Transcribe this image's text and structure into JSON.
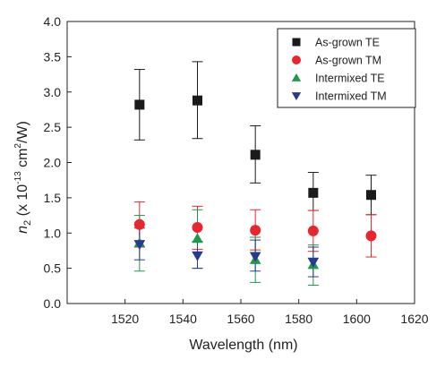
{
  "chart_data": {
    "type": "scatter",
    "xlabel": "Wavelength (nm)",
    "ylabel": {
      "symbol": "n",
      "subscript": "2",
      "prefix": " (x 10",
      "exponent": "-13",
      "unit": " cm",
      "unit_exp": "2",
      "suffix": "/W)"
    },
    "xlim": [
      1500,
      1620
    ],
    "ylim": [
      0.0,
      4.0
    ],
    "x_ticks": [
      "1520",
      "1540",
      "1560",
      "1580",
      "1600",
      "1620"
    ],
    "y_ticks": [
      "0.0",
      "0.5",
      "1.0",
      "1.5",
      "2.0",
      "2.5",
      "3.0",
      "3.5",
      "4.0"
    ],
    "legend_position": "top-right",
    "series": [
      {
        "name": "As-grown TE",
        "marker": "square",
        "color": "#1a1a1a",
        "points": [
          {
            "x": 1525,
            "y": 2.82,
            "err": [
              2.32,
              3.32
            ]
          },
          {
            "x": 1545,
            "y": 2.88,
            "err": [
              2.34,
              3.43
            ]
          },
          {
            "x": 1565,
            "y": 2.11,
            "err": [
              1.71,
              2.52
            ]
          },
          {
            "x": 1585,
            "y": 1.57,
            "err": [
              1.32,
              1.86
            ]
          },
          {
            "x": 1605,
            "y": 1.54,
            "err": [
              1.26,
              1.82
            ]
          }
        ]
      },
      {
        "name": "As-grown TM",
        "marker": "circle",
        "color": "#e8262d",
        "points": [
          {
            "x": 1525,
            "y": 1.12,
            "err": [
              0.8,
              1.44
            ]
          },
          {
            "x": 1545,
            "y": 1.08,
            "err": [
              0.77,
              1.38
            ]
          },
          {
            "x": 1565,
            "y": 1.04,
            "err": [
              0.76,
              1.33
            ]
          },
          {
            "x": 1585,
            "y": 1.03,
            "err": [
              0.74,
              1.32
            ]
          },
          {
            "x": 1605,
            "y": 0.96,
            "err": [
              0.66,
              1.26
            ]
          }
        ]
      },
      {
        "name": "Intermixed TE",
        "marker": "triangle-up",
        "color": "#1f9a4a",
        "points": [
          {
            "x": 1525,
            "y": 0.86,
            "err": [
              0.46,
              1.25
            ]
          },
          {
            "x": 1545,
            "y": 0.92,
            "err": [
              0.5,
              1.33
            ]
          },
          {
            "x": 1565,
            "y": 0.62,
            "err": [
              0.3,
              0.94
            ]
          },
          {
            "x": 1585,
            "y": 0.55,
            "err": [
              0.26,
              0.83
            ]
          }
        ]
      },
      {
        "name": "Intermixed TM",
        "marker": "triangle-down",
        "color": "#283a8e",
        "points": [
          {
            "x": 1525,
            "y": 0.84,
            "err": [
              0.62,
              1.07
            ]
          },
          {
            "x": 1545,
            "y": 0.68,
            "err": [
              0.5,
              0.88
            ]
          },
          {
            "x": 1565,
            "y": 0.67,
            "err": [
              0.46,
              0.9
            ]
          },
          {
            "x": 1585,
            "y": 0.59,
            "err": [
              0.38,
              0.8
            ]
          }
        ]
      }
    ]
  }
}
